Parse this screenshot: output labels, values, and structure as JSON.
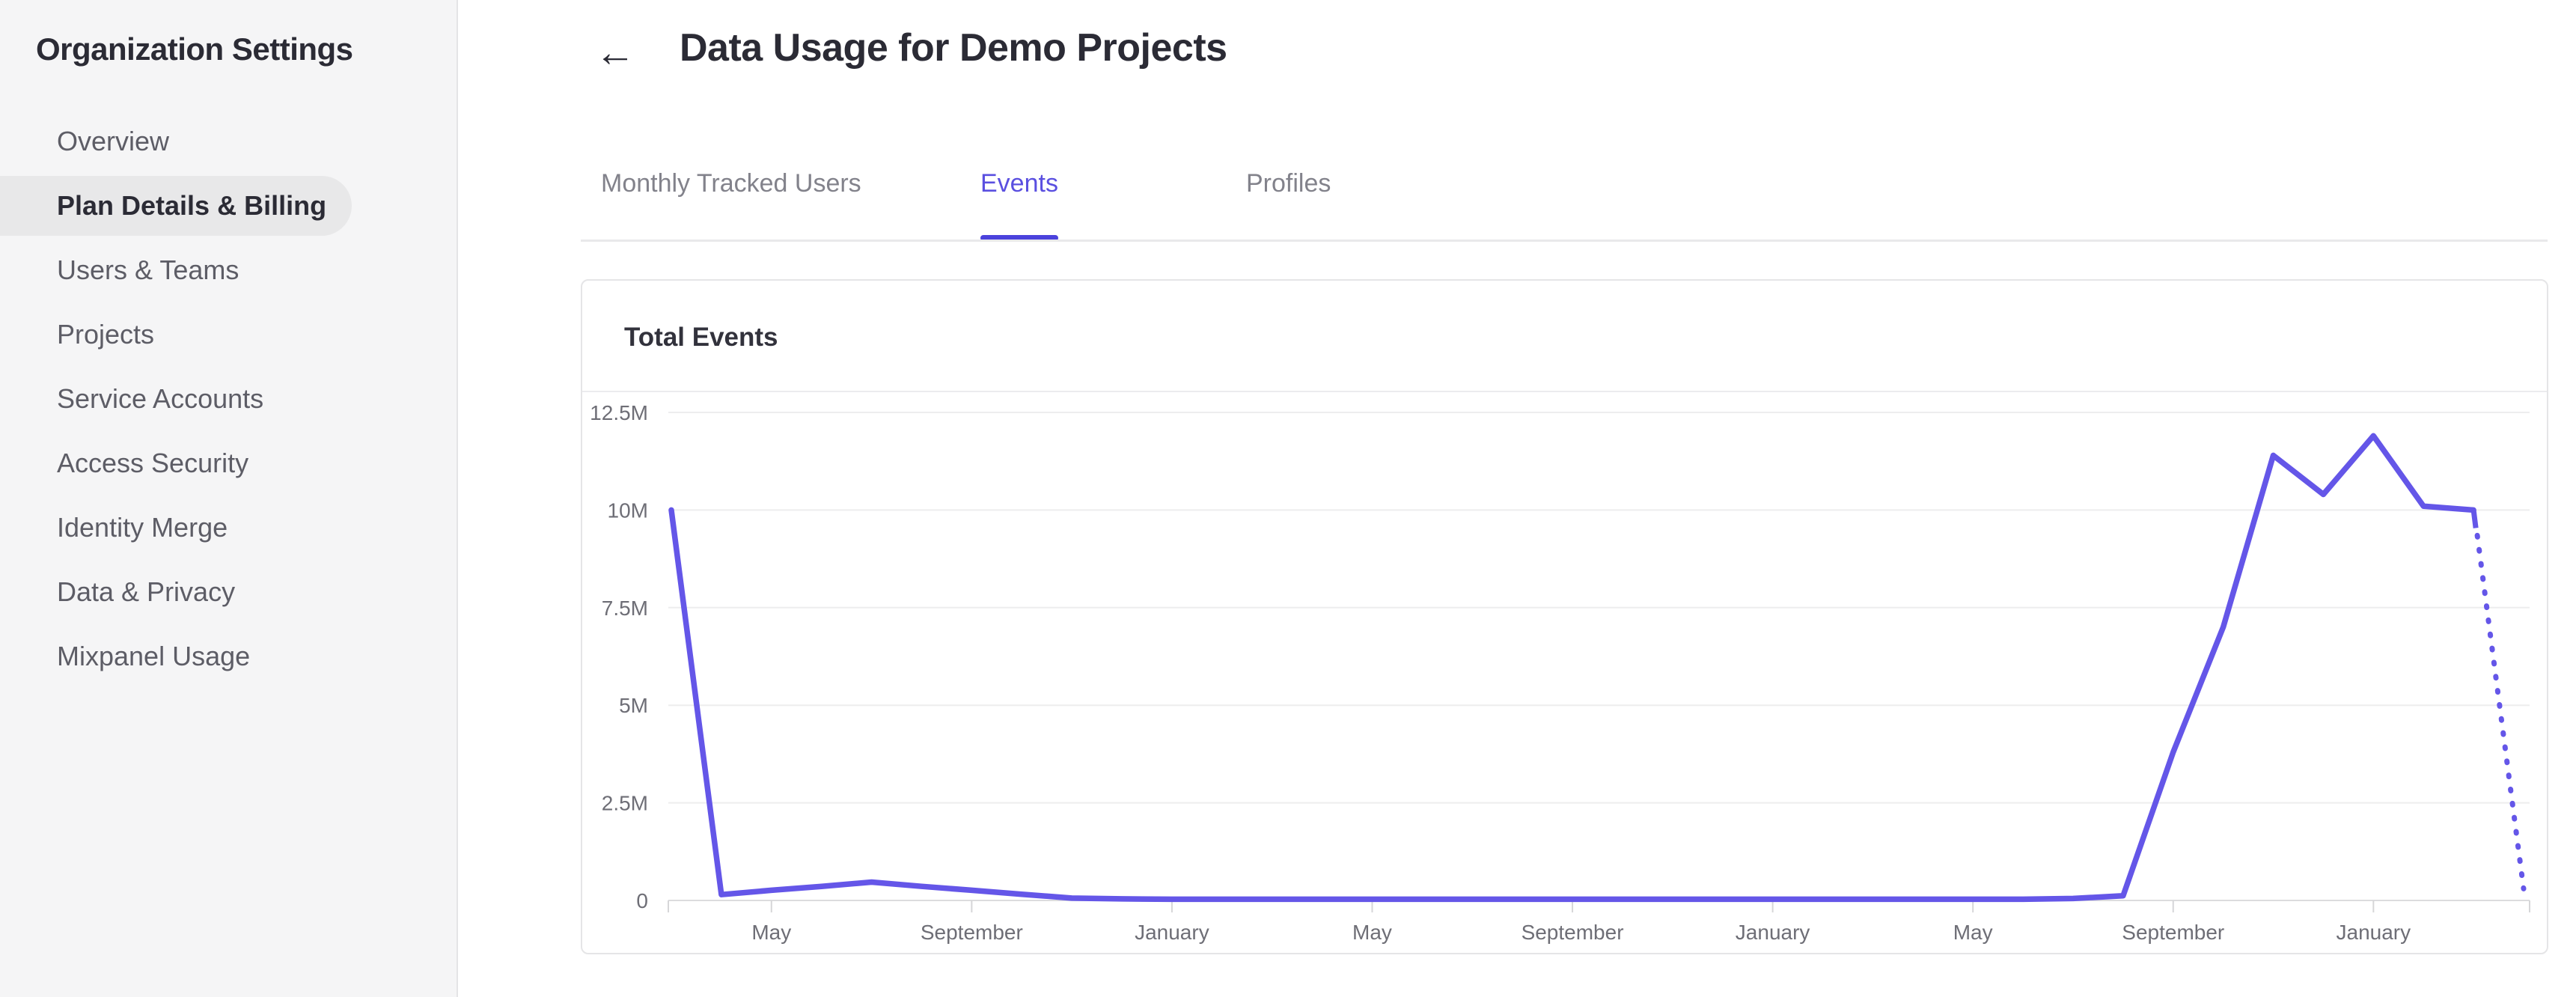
{
  "sidebar": {
    "title": "Organization Settings",
    "items": [
      {
        "label": "Overview",
        "active": false
      },
      {
        "label": "Plan Details & Billing",
        "active": true
      },
      {
        "label": "Users & Teams",
        "active": false
      },
      {
        "label": "Projects",
        "active": false
      },
      {
        "label": "Service Accounts",
        "active": false
      },
      {
        "label": "Access Security",
        "active": false
      },
      {
        "label": "Identity Merge",
        "active": false
      },
      {
        "label": "Data & Privacy",
        "active": false
      },
      {
        "label": "Mixpanel Usage",
        "active": false
      }
    ]
  },
  "header": {
    "back_icon_glyph": "←",
    "title": "Data Usage for Demo Projects"
  },
  "tabs": [
    {
      "label": "Monthly Tracked Users",
      "active": false
    },
    {
      "label": "Events",
      "active": true
    },
    {
      "label": "Profiles",
      "active": false
    }
  ],
  "card": {
    "title": "Total Events"
  },
  "chart_data": {
    "type": "line",
    "title": "Total Events",
    "unit": "millions of events per month",
    "ylim": [
      0,
      12.5
    ],
    "ytick_values": [
      0,
      2.5,
      5,
      7.5,
      10,
      12.5
    ],
    "ytick_labels": [
      "0",
      "2.5M",
      "5M",
      "7.5M",
      "10M",
      "12.5M"
    ],
    "n_points": 38,
    "xtick_indices": [
      2,
      6,
      10,
      14,
      18,
      22,
      26,
      30,
      34
    ],
    "xtick_labels": [
      "May",
      "September",
      "January",
      "May",
      "September",
      "January",
      "May",
      "September",
      "January"
    ],
    "series": [
      {
        "name": "Total Events",
        "values_millions": [
          10,
          0.15,
          0.26,
          0.36,
          0.47,
          0.36,
          0.26,
          0.16,
          0.06,
          0.04,
          0.03,
          0.03,
          0.03,
          0.03,
          0.03,
          0.03,
          0.03,
          0.03,
          0.03,
          0.03,
          0.03,
          0.03,
          0.03,
          0.03,
          0.03,
          0.03,
          0.03,
          0.03,
          0.05,
          0.12,
          3.8,
          7.0,
          11.4,
          10.4,
          11.9,
          10.1,
          10.0
        ]
      }
    ],
    "projection": {
      "style": "dotted",
      "from_value_millions": 10.0,
      "to_value_millions": 0.3
    },
    "grid_on": true,
    "legend": "none",
    "colors": {
      "line": "#6456e8",
      "gridline": "#ededee",
      "baseline": "#dcdcde",
      "tick": "#d6d6d8",
      "axis_text": "#6e6e76",
      "accent_underline": "#4b42dc",
      "active_tab_text": "#5a4fe0"
    }
  }
}
